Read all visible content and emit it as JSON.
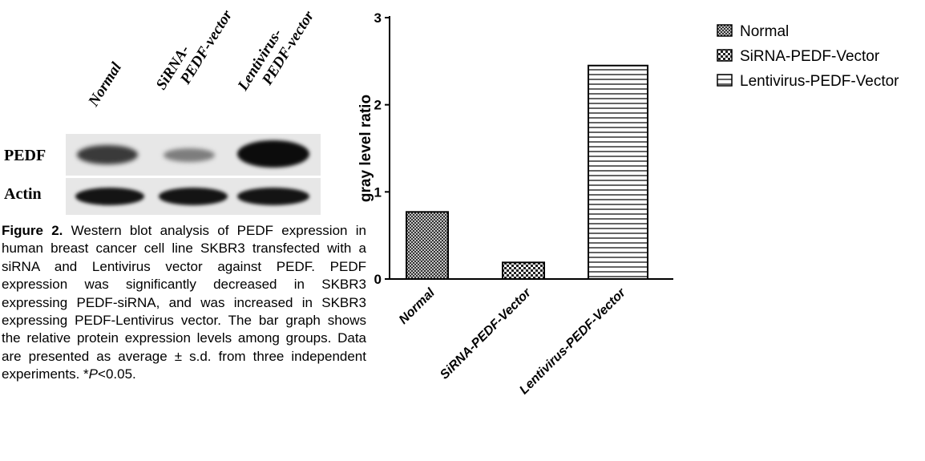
{
  "blot": {
    "lanes": [
      {
        "line1": "Normal",
        "line2": ""
      },
      {
        "line1": "SiRNA-",
        "line2": "PEDF-vector"
      },
      {
        "line1": "Lentivirus-",
        "line2": "PEDF-vector"
      }
    ],
    "rows": [
      "PEDF",
      "Actin"
    ],
    "pedf_relative_intensity": [
      0.75,
      0.45,
      1.0
    ],
    "actin_relative_intensity": [
      1.0,
      1.0,
      1.0
    ]
  },
  "caption": {
    "label": "Figure 2.",
    "text_before_p": "Western blot analysis of PEDF expression in human breast cancer cell line SKBR3 transfected with a siRNA and Lentivirus vector against PEDF. PEDF expression was significantly decreased in SKBR3 expressing PEDF-siRNA, and was increased in SKBR3 expressing PEDF-Lentivirus vector. The bar graph shows the relative protein expression levels among groups. Data are presented as average ± s.d. from three independent experiments. *",
    "p_italic": "P",
    "text_after_p": "<0.05."
  },
  "chart_data": {
    "type": "bar",
    "categories": [
      "Normal",
      "SiRNA-PEDF-Vector",
      "Lentivirus-PEDF-Vector"
    ],
    "values": [
      0.77,
      0.19,
      2.45
    ],
    "ylabel": "gray level ratio",
    "ylim": [
      0,
      3
    ],
    "yticks": [
      "0",
      "1",
      "2",
      "3"
    ],
    "grid": false,
    "legend_position": "top-right",
    "legend": [
      "Normal",
      "SiRNA-PEDF-Vector",
      "Lentivirus-PEDF-Vector"
    ],
    "patterns": [
      "crosshatch",
      "checker",
      "horizontal-lines"
    ]
  }
}
